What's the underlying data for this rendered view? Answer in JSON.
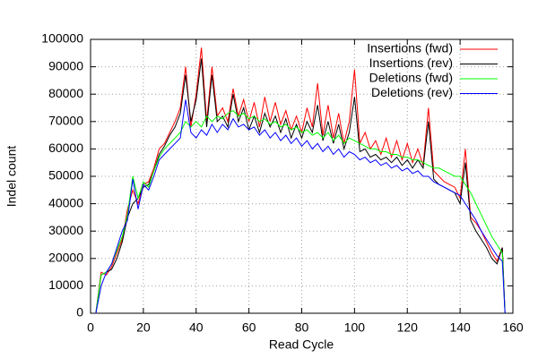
{
  "chart_data": {
    "type": "line",
    "xlabel": "Read Cycle",
    "ylabel": "Indel count",
    "x": [
      2,
      4,
      6,
      8,
      10,
      12,
      14,
      16,
      18,
      20,
      22,
      24,
      26,
      28,
      30,
      32,
      34,
      36,
      38,
      40,
      42,
      44,
      46,
      48,
      50,
      52,
      54,
      56,
      58,
      60,
      62,
      64,
      66,
      68,
      70,
      72,
      74,
      76,
      78,
      80,
      82,
      84,
      86,
      88,
      90,
      92,
      94,
      96,
      98,
      100,
      102,
      104,
      106,
      108,
      110,
      112,
      114,
      116,
      118,
      120,
      122,
      124,
      126,
      128,
      130,
      132,
      134,
      136,
      138,
      140,
      142,
      144,
      146,
      148,
      150,
      152,
      154,
      156,
      157
    ],
    "series": [
      {
        "name": "Insertions (fwd)",
        "color": "#ff0000",
        "values": [
          0,
          15000,
          14000,
          17000,
          22000,
          27000,
          38000,
          45000,
          40000,
          47000,
          48000,
          53000,
          60000,
          62000,
          66000,
          70000,
          75000,
          90000,
          68000,
          80000,
          97000,
          70000,
          90000,
          72000,
          75000,
          70000,
          82000,
          72000,
          78000,
          70000,
          77000,
          68000,
          79000,
          70000,
          77000,
          69000,
          74000,
          67000,
          72000,
          66000,
          75000,
          68000,
          84000,
          65000,
          76000,
          64000,
          73000,
          62000,
          70000,
          89000,
          62000,
          66000,
          60000,
          63000,
          58000,
          64000,
          57000,
          63000,
          56000,
          62000,
          55000,
          60000,
          54000,
          75000,
          52000,
          50000,
          48000,
          47000,
          46000,
          42000,
          60000,
          35000,
          33000,
          30000,
          26000,
          22000,
          19000,
          24000,
          0
        ]
      },
      {
        "name": "Insertions (rev)",
        "color": "#000000",
        "values": [
          0,
          14000,
          15000,
          16000,
          20000,
          26000,
          35000,
          40000,
          42000,
          46000,
          47000,
          52000,
          58000,
          61000,
          65000,
          68000,
          73000,
          87000,
          70000,
          78000,
          93000,
          68000,
          87000,
          70000,
          72000,
          68000,
          80000,
          70000,
          75000,
          67000,
          72000,
          66000,
          73000,
          68000,
          72000,
          66000,
          71000,
          64000,
          69000,
          64000,
          70000,
          66000,
          76000,
          63000,
          70000,
          62000,
          69000,
          60000,
          66000,
          79000,
          59000,
          60000,
          57000,
          58000,
          56000,
          57000,
          55000,
          57000,
          54000,
          56000,
          53000,
          56000,
          53000,
          70000,
          49000,
          47000,
          46000,
          45000,
          44000,
          40000,
          55000,
          34000,
          30000,
          27000,
          24000,
          20000,
          18000,
          24000,
          0
        ]
      },
      {
        "name": "Deletions (fwd)",
        "color": "#00ff00",
        "values": [
          0,
          14000,
          15000,
          18000,
          23000,
          28000,
          36000,
          50000,
          42000,
          48000,
          46000,
          52000,
          57000,
          60000,
          62000,
          64000,
          66000,
          70000,
          68000,
          70000,
          68000,
          72000,
          70000,
          72000,
          71000,
          73000,
          74000,
          72000,
          73000,
          71000,
          72000,
          70000,
          71000,
          69000,
          70000,
          68000,
          69000,
          67000,
          68000,
          66000,
          67000,
          65000,
          66000,
          64000,
          66000,
          63000,
          65000,
          62000,
          64000,
          63000,
          62000,
          61000,
          60000,
          60000,
          59000,
          59000,
          58000,
          58000,
          57000,
          57000,
          56000,
          56000,
          55000,
          54000,
          53000,
          53000,
          52000,
          51000,
          50000,
          50000,
          47000,
          44000,
          40000,
          36000,
          32000,
          28000,
          25000,
          22000,
          0
        ]
      },
      {
        "name": "Deletions (rev)",
        "color": "#0000ff",
        "values": [
          0,
          10000,
          15000,
          18000,
          24000,
          30000,
          34000,
          49000,
          38000,
          47000,
          45000,
          50000,
          56000,
          58000,
          60000,
          62000,
          64000,
          78000,
          66000,
          64000,
          67000,
          65000,
          69000,
          66000,
          69000,
          67000,
          71000,
          68000,
          69000,
          67000,
          68000,
          65000,
          67000,
          64000,
          66000,
          63000,
          65000,
          62000,
          64000,
          61000,
          63000,
          60000,
          62000,
          59000,
          61000,
          58000,
          60000,
          57000,
          59000,
          58000,
          56000,
          57000,
          55000,
          56000,
          54000,
          55000,
          53000,
          54000,
          52000,
          53000,
          51000,
          52000,
          50000,
          50000,
          48000,
          47000,
          46000,
          45000,
          44000,
          43000,
          40000,
          37000,
          34000,
          30000,
          27000,
          24000,
          21000,
          19000,
          0
        ]
      }
    ],
    "xlim": [
      0,
      160
    ],
    "xticks": [
      0,
      20,
      40,
      60,
      80,
      100,
      120,
      140,
      160
    ],
    "ylim": [
      0,
      100000
    ],
    "yticks": [
      0,
      10000,
      20000,
      30000,
      40000,
      50000,
      60000,
      70000,
      80000,
      90000,
      100000
    ],
    "grid": true,
    "legend": "top-right"
  }
}
